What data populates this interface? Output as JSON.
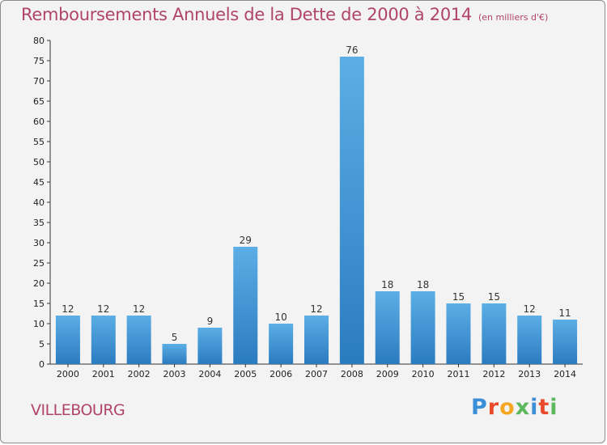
{
  "header": {
    "title": "Remboursements Annuels de la Dette de 2000 à 2014",
    "subtitle": "(en milliers d'€)"
  },
  "footer": {
    "commune": "VILLEBOURG",
    "brand_letters": [
      "P",
      "r",
      "o",
      "x",
      "i",
      "t",
      "i"
    ],
    "brand_colors": [
      "#3b8fd6",
      "#e84a2a",
      "#f5a623",
      "#5cb85c",
      "#3b8fd6",
      "#e84a2a",
      "#5cb85c"
    ]
  },
  "colors": {
    "bar_light": "#5caee6",
    "bar_dark": "#2a7cc0",
    "accent": "#b0446a"
  },
  "chart_data": {
    "type": "bar",
    "categories": [
      "2000",
      "2001",
      "2002",
      "2003",
      "2004",
      "2005",
      "2006",
      "2007",
      "2008",
      "2009",
      "2010",
      "2011",
      "2012",
      "2013",
      "2014"
    ],
    "values": [
      12,
      12,
      12,
      5,
      9,
      29,
      10,
      12,
      76,
      18,
      18,
      15,
      15,
      12,
      11
    ],
    "ylim": [
      0,
      80
    ],
    "yticks": [
      0,
      5,
      10,
      15,
      20,
      25,
      30,
      35,
      40,
      45,
      50,
      55,
      60,
      65,
      70,
      75,
      80
    ],
    "grid": false,
    "show_data_labels": true
  }
}
